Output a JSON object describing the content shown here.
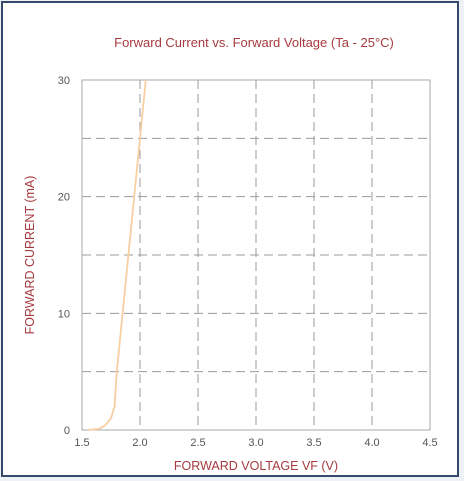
{
  "chart_data": {
    "type": "line",
    "title": "Forward Current vs. Forward Voltage (Ta - 25°C)",
    "xlabel": "FORWARD VOLTAGE VF (V)",
    "ylabel": "FORWARD CURRENT (mA)",
    "xlim": [
      1.5,
      4.5
    ],
    "ylim": [
      0,
      30
    ],
    "x_ticks": [
      "1.5",
      "2.0",
      "2.5",
      "3.0",
      "3.5",
      "4.0",
      "4.5"
    ],
    "y_ticks": [
      "0",
      "10",
      "20",
      "30"
    ],
    "grid": true,
    "grid_style": "dashed",
    "series": [
      {
        "color": "#f7cfa3",
        "x": [
          1.55,
          1.65,
          1.7,
          1.75,
          1.78,
          1.8,
          1.85,
          1.9,
          1.95,
          2.0,
          2.05
        ],
        "y": [
          0.0,
          0.1,
          0.4,
          1.0,
          2.0,
          5.0,
          10.0,
          15.0,
          20.0,
          25.0,
          30.0
        ]
      }
    ]
  }
}
